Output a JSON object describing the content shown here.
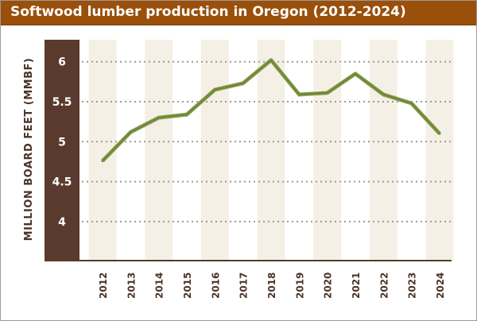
{
  "chart_data": {
    "type": "line",
    "title": "Softwood lumber production in Oregon (2012-2024)",
    "xlabel": "",
    "ylabel": "MILLION BOARD FEET (MMBF)",
    "categories": [
      "2012",
      "2013",
      "2014",
      "2015",
      "2016",
      "2017",
      "2018",
      "2019",
      "2020",
      "2021",
      "2022",
      "2023",
      "2024"
    ],
    "series": [
      {
        "values": [
          4.76,
          5.12,
          5.3,
          5.34,
          5.65,
          5.73,
          6.02,
          5.59,
          5.61,
          5.85,
          5.59,
          5.48,
          5.1
        ]
      }
    ],
    "yticks": [
      "4",
      "4.5",
      "5",
      "5.5",
      "6"
    ],
    "ylim": [
      3.5,
      6.5
    ],
    "grid": true,
    "colors": {
      "line": "#6b8e2e",
      "title_bar": "#9a4f0a",
      "axis_panel": "#5a3a2c",
      "band": "#f5f0e6",
      "grid": "#9a9a9a"
    }
  }
}
